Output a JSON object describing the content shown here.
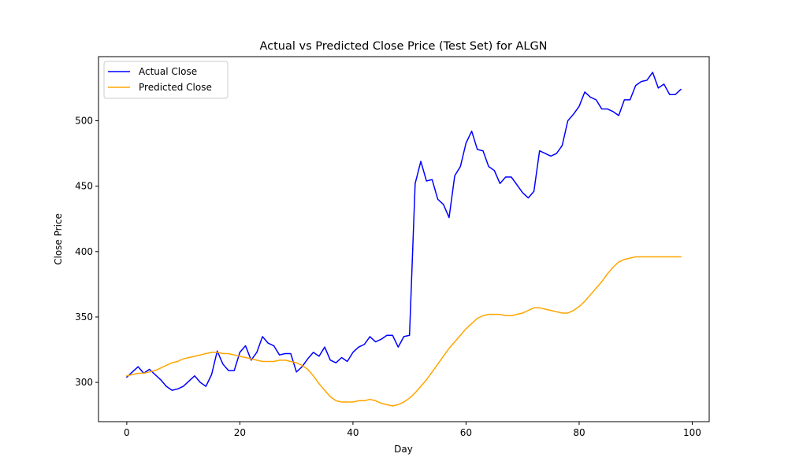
{
  "chart_data": {
    "type": "line",
    "title": "Actual vs Predicted Close Price (Test Set) for ALGN",
    "xlabel": "Day",
    "ylabel": "Close Price",
    "xlim": [
      -5,
      103
    ],
    "ylim": [
      270,
      549
    ],
    "xticks": [
      0,
      20,
      40,
      60,
      80,
      100
    ],
    "yticks": [
      300,
      350,
      400,
      450,
      500
    ],
    "grid": false,
    "legend_position": "top-left",
    "series": [
      {
        "name": "Actual Close",
        "color": "#0000ff",
        "x": [
          0,
          1,
          2,
          3,
          4,
          5,
          6,
          7,
          8,
          9,
          10,
          11,
          12,
          13,
          14,
          15,
          16,
          17,
          18,
          19,
          20,
          21,
          22,
          23,
          24,
          25,
          26,
          27,
          28,
          29,
          30,
          31,
          32,
          33,
          34,
          35,
          36,
          37,
          38,
          39,
          40,
          41,
          42,
          43,
          44,
          45,
          46,
          47,
          48,
          49,
          50,
          51,
          52,
          53,
          54,
          55,
          56,
          57,
          58,
          59,
          60,
          61,
          62,
          63,
          64,
          65,
          66,
          67,
          68,
          69,
          70,
          71,
          72,
          73,
          74,
          75,
          76,
          77,
          78,
          79,
          80,
          81,
          82,
          83,
          84,
          85,
          86,
          87,
          88,
          89,
          90,
          91,
          92,
          93,
          94,
          95,
          96,
          97,
          98
        ],
        "values": [
          304,
          308,
          312,
          307,
          310,
          306,
          302,
          297,
          294,
          295,
          297,
          301,
          305,
          300,
          297,
          306,
          324,
          314,
          309,
          309,
          323,
          328,
          317,
          323,
          335,
          330,
          328,
          321,
          322,
          322,
          308,
          312,
          318,
          323,
          320,
          327,
          317,
          315,
          319,
          316,
          323,
          327,
          329,
          335,
          331,
          333,
          336,
          336,
          327,
          335,
          336,
          452,
          469,
          454,
          455,
          440,
          436,
          426,
          458,
          465,
          483,
          492,
          478,
          477,
          465,
          462,
          452,
          457,
          457,
          451,
          445,
          441,
          446,
          477,
          475,
          473,
          475,
          481,
          500,
          505,
          511,
          522,
          518,
          516,
          509,
          509,
          507,
          504,
          516,
          516,
          527,
          530,
          531,
          537,
          525,
          528,
          520,
          520,
          524
        ]
      },
      {
        "name": "Predicted Close",
        "color": "#ffa500",
        "x": [
          0,
          1,
          2,
          3,
          4,
          5,
          6,
          7,
          8,
          9,
          10,
          11,
          12,
          13,
          14,
          15,
          16,
          17,
          18,
          19,
          20,
          21,
          22,
          23,
          24,
          25,
          26,
          27,
          28,
          29,
          30,
          31,
          32,
          33,
          34,
          35,
          36,
          37,
          38,
          39,
          40,
          41,
          42,
          43,
          44,
          45,
          46,
          47,
          48,
          49,
          50,
          51,
          52,
          53,
          54,
          55,
          56,
          57,
          58,
          59,
          60,
          61,
          62,
          63,
          64,
          65,
          66,
          67,
          68,
          69,
          70,
          71,
          72,
          73,
          74,
          75,
          76,
          77,
          78,
          79,
          80,
          81,
          82,
          83,
          84,
          85,
          86,
          87,
          88,
          89,
          90,
          91,
          92,
          93,
          94,
          95,
          96,
          97,
          98
        ],
        "values": [
          305,
          306,
          307,
          307,
          308,
          309,
          311,
          313,
          315,
          316,
          318,
          319,
          320,
          321,
          322,
          323,
          323,
          322,
          322,
          321,
          320,
          319,
          318,
          317,
          316,
          316,
          316,
          317,
          317,
          316,
          315,
          313,
          310,
          305,
          299,
          294,
          289,
          286,
          285,
          285,
          285,
          286,
          286,
          287,
          286,
          284,
          283,
          282,
          283,
          285,
          288,
          292,
          297,
          302,
          308,
          314,
          320,
          326,
          331,
          336,
          341,
          345,
          349,
          351,
          352,
          352,
          352,
          351,
          351,
          352,
          353,
          355,
          357,
          357,
          356,
          355,
          354,
          353,
          353,
          355,
          358,
          362,
          367,
          372,
          377,
          383,
          388,
          392,
          394,
          395,
          396,
          396,
          396,
          396,
          396,
          396,
          396,
          396,
          396
        ]
      }
    ]
  }
}
